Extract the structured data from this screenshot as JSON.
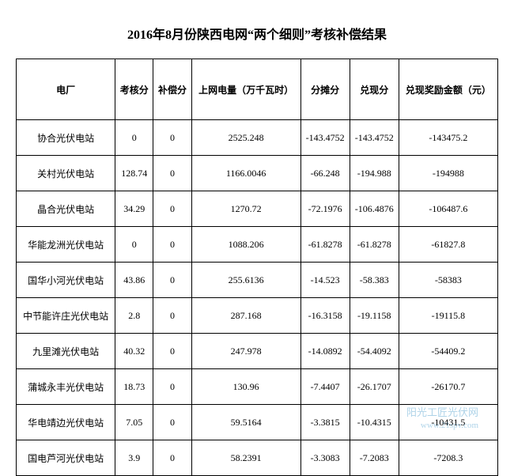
{
  "title": "2016年8月份陕西电网“两个细则”考核补偿结果",
  "columns": [
    "电厂",
    "考核分",
    "补偿分",
    "上网电量（万千瓦时）",
    "分摊分",
    "兑现分",
    "兑现奖励金额（元）"
  ],
  "rows": [
    [
      "协合光伏电站",
      "0",
      "0",
      "2525.248",
      "-143.4752",
      "-143.4752",
      "-143475.2"
    ],
    [
      "关村光伏电站",
      "128.74",
      "0",
      "1166.0046",
      "-66.248",
      "-194.988",
      "-194988"
    ],
    [
      "晶合光伏电站",
      "34.29",
      "0",
      "1270.72",
      "-72.1976",
      "-106.4876",
      "-106487.6"
    ],
    [
      "华能龙洲光伏电站",
      "0",
      "0",
      "1088.206",
      "-61.8278",
      "-61.8278",
      "-61827.8"
    ],
    [
      "国华小河光伏电站",
      "43.86",
      "0",
      "255.6136",
      "-14.523",
      "-58.383",
      "-58383"
    ],
    [
      "中节能许庄光伏电站",
      "2.8",
      "0",
      "287.168",
      "-16.3158",
      "-19.1158",
      "-19115.8"
    ],
    [
      "九里滩光伏电站",
      "40.32",
      "0",
      "247.978",
      "-14.0892",
      "-54.4092",
      "-54409.2"
    ],
    [
      "蒲城永丰光伏电站",
      "18.73",
      "0",
      "130.96",
      "-7.4407",
      "-26.1707",
      "-26170.7"
    ],
    [
      "华电靖边光伏电站",
      "7.05",
      "0",
      "59.5164",
      "-3.3815",
      "-10.4315",
      "-10431.5"
    ],
    [
      "国电芦河光伏电站",
      "3.9",
      "0",
      "58.2391",
      "-3.3083",
      "-7.2083",
      "-7208.3"
    ]
  ],
  "watermark": {
    "line1": "阳光工匠光伏网",
    "line2": "www.21spv.com"
  }
}
